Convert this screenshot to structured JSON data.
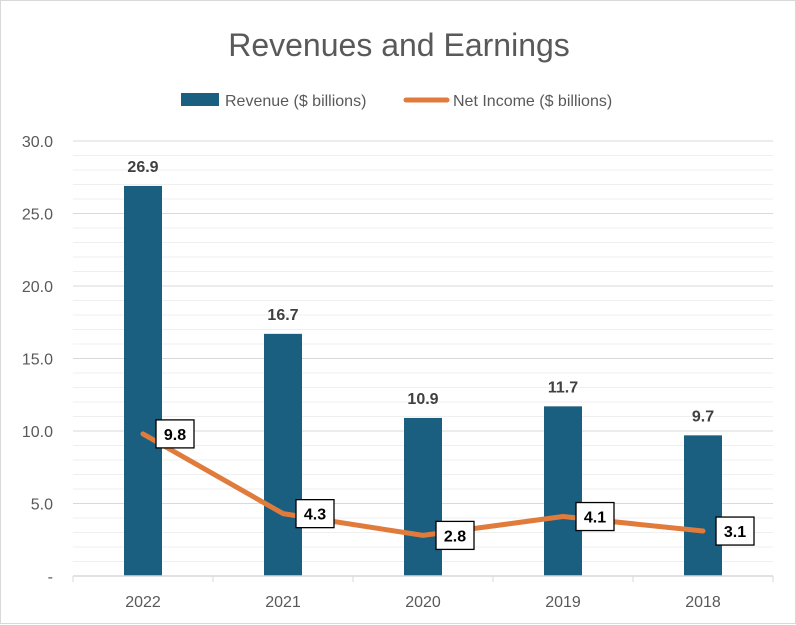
{
  "chart_data": {
    "type": "bar",
    "title": "Revenues and Earnings",
    "categories": [
      "2022",
      "2021",
      "2020",
      "2019",
      "2018"
    ],
    "series": [
      {
        "name": "Revenue ($ billions)",
        "type": "bar",
        "values": [
          26.9,
          16.7,
          10.9,
          11.7,
          9.7
        ],
        "color": "#1a5e80"
      },
      {
        "name": "Net Income ($ billions)",
        "type": "line",
        "values": [
          9.8,
          4.3,
          2.8,
          4.1,
          3.1
        ],
        "color": "#e07b3c"
      }
    ],
    "yticks": [
      "-",
      "5.0",
      "10.0",
      "15.0",
      "20.0",
      "25.0",
      "30.0"
    ],
    "ylim": [
      0,
      30
    ],
    "grid": true,
    "legend": "top"
  }
}
